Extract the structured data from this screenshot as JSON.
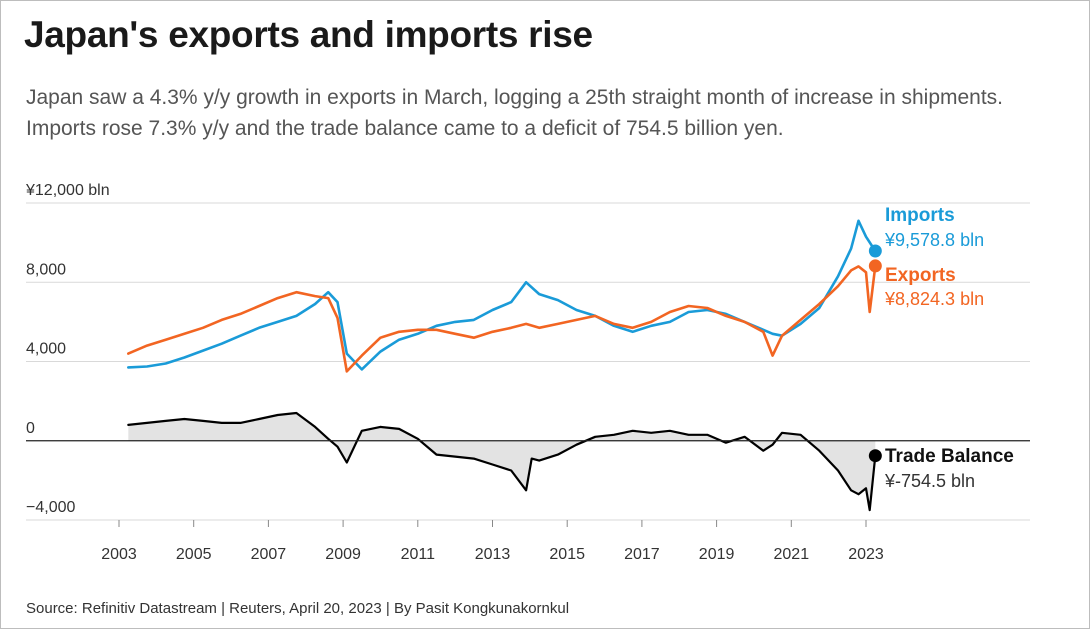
{
  "title": "Japan's exports and imports rise",
  "subtitle": "Japan saw a 4.3% y/y growth in exports in March, logging a 25th straight month of increase in shipments. Imports rose 7.3% y/y and the trade balance came to a deficit of 754.5 billion yen.",
  "source": "Source: Refinitiv Datastream | Reuters, April 20, 2023 | By Pasit Kongkunakornkul",
  "colors": {
    "imports": "#1a9bd8",
    "exports": "#f26522",
    "balance": "#000000",
    "balance_fill": "#e3e3e3",
    "grid": "#d9d9d9"
  },
  "chart_data": {
    "type": "line",
    "unit": "¥ bln",
    "ylim": [
      -4000,
      12000
    ],
    "xlim": [
      2003,
      2025
    ],
    "y_ticks": [
      {
        "value": 12000,
        "label": "¥12,000 bln"
      },
      {
        "value": 8000,
        "label": "8,000"
      },
      {
        "value": 4000,
        "label": "4,000"
      },
      {
        "value": 0,
        "label": "0"
      },
      {
        "value": -4000,
        "label": "−4,000"
      }
    ],
    "x_ticks": [
      "2003",
      "2005",
      "2007",
      "2009",
      "2011",
      "2013",
      "2015",
      "2017",
      "2019",
      "2021",
      "2023"
    ],
    "x_tick_values": [
      2003,
      2005,
      2007,
      2009,
      2011,
      2013,
      2015,
      2017,
      2019,
      2021,
      2023
    ],
    "grid": true,
    "series": [
      {
        "name": "Imports",
        "key": "imports",
        "value_label": "¥9,578.8 bln",
        "x": [
          2003.25,
          2003.75,
          2004.25,
          2004.75,
          2005.25,
          2005.75,
          2006.25,
          2006.75,
          2007.25,
          2007.75,
          2008.25,
          2008.6,
          2008.85,
          2009.1,
          2009.5,
          2010,
          2010.5,
          2011,
          2011.5,
          2012,
          2012.5,
          2013,
          2013.5,
          2013.9,
          2014.25,
          2014.75,
          2015.25,
          2015.75,
          2016.25,
          2016.75,
          2017.25,
          2017.75,
          2018.25,
          2018.75,
          2019.25,
          2019.75,
          2020.25,
          2020.5,
          2020.75,
          2021.25,
          2021.75,
          2022.25,
          2022.6,
          2022.8,
          2023,
          2023.25
        ],
        "values": [
          3700,
          3750,
          3900,
          4200,
          4550,
          4900,
          5300,
          5700,
          6000,
          6300,
          6900,
          7500,
          7000,
          4400,
          3600,
          4500,
          5100,
          5400,
          5800,
          6000,
          6100,
          6600,
          7000,
          8000,
          7400,
          7100,
          6600,
          6300,
          5800,
          5500,
          5800,
          6000,
          6500,
          6600,
          6400,
          6000,
          5600,
          5400,
          5300,
          5900,
          6700,
          8300,
          9700,
          11100,
          10300,
          9578.8
        ]
      },
      {
        "name": "Exports",
        "key": "exports",
        "value_label": "¥8,824.3 bln",
        "x": [
          2003.25,
          2003.75,
          2004.25,
          2004.75,
          2005.25,
          2005.75,
          2006.25,
          2006.75,
          2007.25,
          2007.75,
          2008.25,
          2008.6,
          2008.85,
          2009.1,
          2009.5,
          2010,
          2010.5,
          2011,
          2011.5,
          2012,
          2012.5,
          2013,
          2013.5,
          2013.9,
          2014.25,
          2014.75,
          2015.25,
          2015.75,
          2016.25,
          2016.75,
          2017.25,
          2017.75,
          2018.25,
          2018.75,
          2019.25,
          2019.75,
          2020.25,
          2020.5,
          2020.75,
          2021.25,
          2021.75,
          2022.25,
          2022.6,
          2022.8,
          2023,
          2023.1,
          2023.25
        ],
        "values": [
          4400,
          4800,
          5100,
          5400,
          5700,
          6100,
          6400,
          6800,
          7200,
          7500,
          7300,
          7200,
          6200,
          3500,
          4300,
          5200,
          5500,
          5600,
          5600,
          5400,
          5200,
          5500,
          5700,
          5900,
          5700,
          5900,
          6100,
          6300,
          5900,
          5700,
          6000,
          6500,
          6800,
          6700,
          6300,
          6000,
          5500,
          4300,
          5300,
          6100,
          6900,
          7800,
          8600,
          8800,
          8500,
          6500,
          8824.3
        ]
      },
      {
        "name": "Trade Balance",
        "key": "balance",
        "value_label": "¥-754.5 bln",
        "x": [
          2003.25,
          2003.75,
          2004.25,
          2004.75,
          2005.25,
          2005.75,
          2006.25,
          2006.75,
          2007.25,
          2007.75,
          2008.25,
          2008.6,
          2008.85,
          2009.1,
          2009.5,
          2010,
          2010.5,
          2011,
          2011.5,
          2012,
          2012.5,
          2013,
          2013.5,
          2013.9,
          2014.05,
          2014.25,
          2014.75,
          2015.25,
          2015.75,
          2016.25,
          2016.75,
          2017.25,
          2017.75,
          2018.25,
          2018.75,
          2019.25,
          2019.75,
          2020.25,
          2020.5,
          2020.75,
          2021.25,
          2021.75,
          2022.25,
          2022.6,
          2022.8,
          2023,
          2023.1,
          2023.25
        ],
        "values": [
          800,
          900,
          1000,
          1100,
          1000,
          900,
          900,
          1100,
          1300,
          1400,
          700,
          100,
          -300,
          -1100,
          500,
          700,
          600,
          100,
          -700,
          -800,
          -900,
          -1200,
          -1500,
          -2500,
          -900,
          -1000,
          -700,
          -200,
          200,
          300,
          500,
          400,
          500,
          300,
          300,
          -100,
          200,
          -500,
          -200,
          400,
          300,
          -500,
          -1500,
          -2500,
          -2700,
          -2400,
          -3500,
          -754.5
        ]
      }
    ]
  }
}
